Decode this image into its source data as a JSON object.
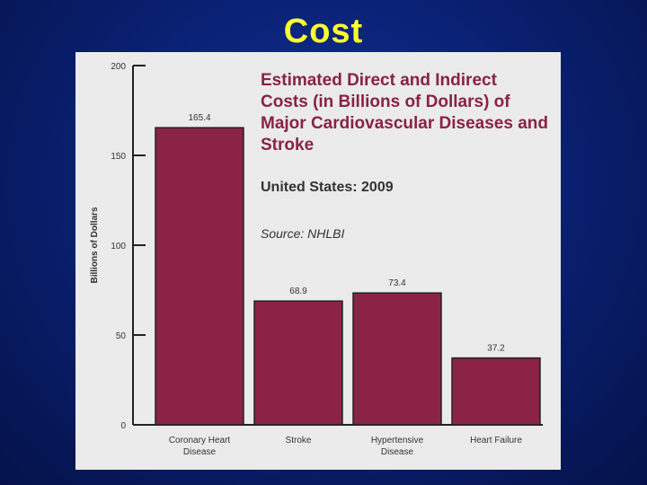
{
  "slide": {
    "title": "Cost"
  },
  "chart_data": {
    "type": "bar",
    "title": "Estimated Direct and Indirect Costs (in Billions of Dollars) of Major Cardiovascular Diseases and Stroke",
    "subtitle": "United States: 2009",
    "source": "Source: NHLBI",
    "ylabel": "Billions of Dollars",
    "xlabel": "",
    "ylim": [
      0,
      200
    ],
    "yticks": [
      0,
      50,
      100,
      150,
      200
    ],
    "grid": false,
    "categories": [
      [
        "Coronary Heart",
        "Disease"
      ],
      [
        "Stroke"
      ],
      [
        "Hypertensive",
        "Disease"
      ],
      [
        "Heart Failure"
      ]
    ],
    "values": [
      165.4,
      68.9,
      73.4,
      37.2
    ],
    "value_labels": [
      "165.4",
      "68.9",
      "73.4",
      "37.2"
    ],
    "bar_color": "#8b2346"
  }
}
